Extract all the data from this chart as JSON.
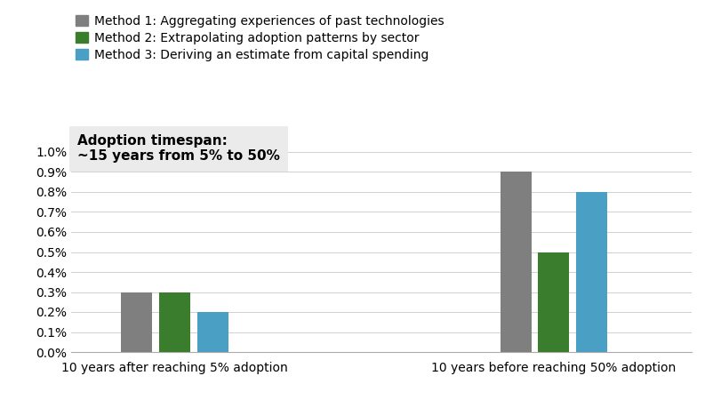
{
  "groups": [
    "10 years after reaching 5% adoption",
    "10 years before reaching 50% adoption"
  ],
  "methods": [
    {
      "label": "Method 1: Aggregating experiences of past technologies",
      "color": "#7f7f7f",
      "values": [
        0.003,
        0.009
      ]
    },
    {
      "label": "Method 2: Extrapolating adoption patterns by sector",
      "color": "#3a7d2c",
      "values": [
        0.003,
        0.005
      ]
    },
    {
      "label": "Method 3: Deriving an estimate from capital spending",
      "color": "#4a9fc4",
      "values": [
        0.002,
        0.008
      ]
    }
  ],
  "annotation_text": "Adoption timespan:\n~15 years from 5% to 50%",
  "ylim": [
    0,
    0.011
  ],
  "yticks": [
    0.0,
    0.001,
    0.002,
    0.003,
    0.004,
    0.005,
    0.006,
    0.007,
    0.008,
    0.009,
    0.01
  ],
  "ytick_labels": [
    "0.0%",
    "0.1%",
    "0.2%",
    "0.3%",
    "0.4%",
    "0.5%",
    "0.6%",
    "0.7%",
    "0.8%",
    "0.9%",
    "1.0%"
  ],
  "background_color": "#ffffff",
  "bar_width": 0.18,
  "legend_fontsize": 10,
  "tick_fontsize": 10,
  "annotation_fontsize": 11
}
